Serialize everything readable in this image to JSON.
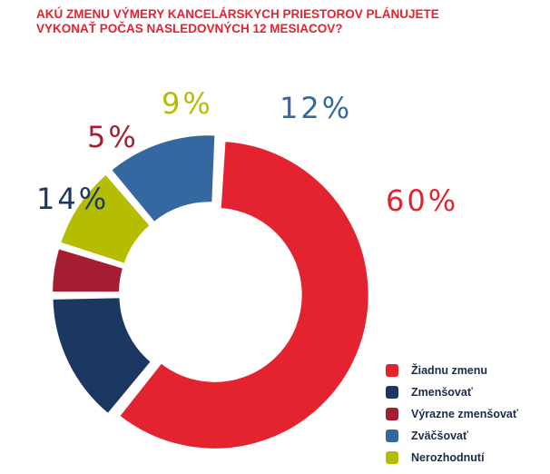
{
  "chart_data": {
    "type": "pie",
    "title_lines": [
      "AKÚ ZMENU VÝMERY KANCELÁRSKYCH PRIESTOROV PLÁNUJETE",
      "VYKONAŤ POČAS NASLEDOVNÝCH 12 MESIACOV?"
    ],
    "donut": true,
    "legend_position": "bottom-right",
    "slices": [
      {
        "name": "Žiadnu zmenu",
        "value": 60,
        "label": "60%",
        "color": "#e3232f"
      },
      {
        "name": "Zmenšovať",
        "value": 14,
        "label": "14%",
        "color": "#1b3762"
      },
      {
        "name": "Výrazne zmenšovať",
        "value": 5,
        "label": "5%",
        "color": "#a51d31"
      },
      {
        "name": "Nerozhodnutí",
        "value": 9,
        "label": "9%",
        "color": "#b5bd00"
      },
      {
        "name": "Zväčšovať",
        "value": 12,
        "label": "12%",
        "color": "#3567a0"
      }
    ],
    "legend_order": [
      "Žiadnu zmenu",
      "Zmenšovať",
      "Výrazne zmenšovať",
      "Zväčšovať",
      "Nerozhodnutí"
    ]
  }
}
